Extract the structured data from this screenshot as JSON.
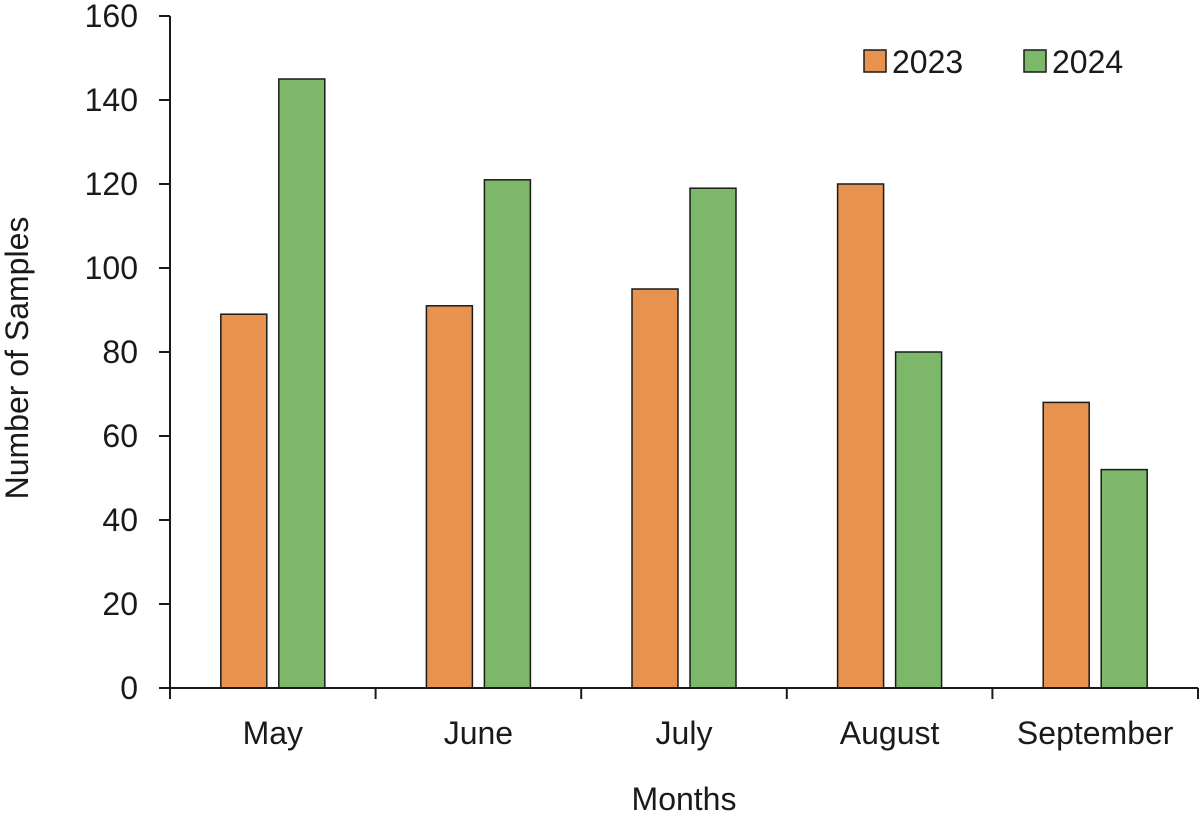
{
  "chart_data": {
    "type": "bar",
    "categories": [
      "May",
      "June",
      "July",
      "August",
      "September"
    ],
    "series": [
      {
        "name": "2023",
        "color": "#E8924F",
        "values": [
          89,
          91,
          95,
          120,
          68
        ]
      },
      {
        "name": "2024",
        "color": "#7DB86A",
        "values": [
          145,
          121,
          119,
          80,
          52
        ]
      }
    ],
    "xlabel": "Months",
    "ylabel": "Number of Samples",
    "ylim": [
      0,
      160
    ],
    "yticks": [
      "0",
      "20",
      "40",
      "60",
      "80",
      "100",
      "120",
      "140",
      "160"
    ],
    "grid": false,
    "legend_position": "top-right"
  }
}
